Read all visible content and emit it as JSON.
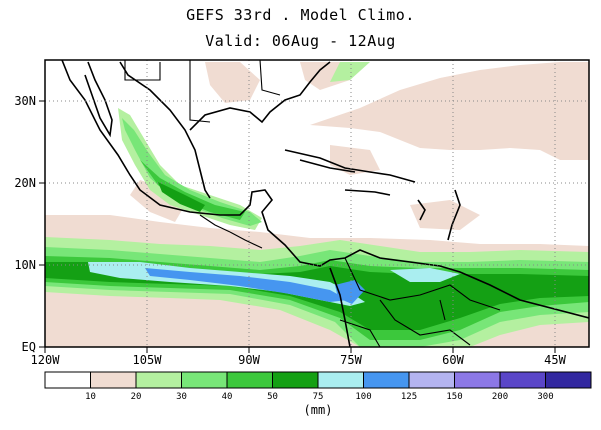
{
  "title_line1": "GEFS 33rd . Model Climo.",
  "title_line2": "Valid: 06Aug - 12Aug",
  "lon_labels": [
    "120W",
    "105W",
    "90W",
    "75W",
    "60W",
    "45W"
  ],
  "lat_labels": [
    "30N",
    "20N",
    "10N",
    "EQ"
  ],
  "colorbar": {
    "unit": "(mm)",
    "levels": [
      "10",
      "20",
      "30",
      "40",
      "50",
      "75",
      "100",
      "125",
      "150",
      "200",
      "300"
    ],
    "colors": [
      "#ffffff",
      "#f0dcd2",
      "#b4f0a0",
      "#78e678",
      "#3cc83c",
      "#14a014",
      "#aaeef0",
      "#4696f0",
      "#b4b4f0",
      "#8c78e6",
      "#5a46c8",
      "#3228a0"
    ]
  },
  "map_extent": {
    "lon_min": -120,
    "lon_max": -40,
    "lat_min": 0,
    "lat_max": 35
  }
}
